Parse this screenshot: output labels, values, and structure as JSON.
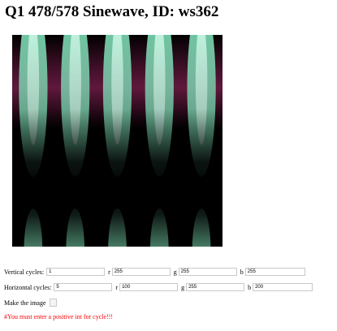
{
  "page": {
    "title": "Q1 478/578 Sinewave, ID: ws362"
  },
  "form": {
    "vertical": {
      "label": "Vertical cycles:",
      "cycles": "1",
      "r_label": "r",
      "r": "255",
      "g_label": "g",
      "g": "255",
      "b_label": "b",
      "b": "255"
    },
    "horizontal": {
      "label": "Horizontal cycles:",
      "cycles": "5",
      "r_label": "r",
      "r": "100",
      "g_label": "g",
      "g": "255",
      "b_label": "b",
      "b": "200"
    },
    "make_label": "Make the image",
    "error": "#You must enter a positive int for cycle!!!"
  },
  "colors": {
    "stripe": "#8cf5c9",
    "band": "#781e4b",
    "error": "#ff0000"
  }
}
